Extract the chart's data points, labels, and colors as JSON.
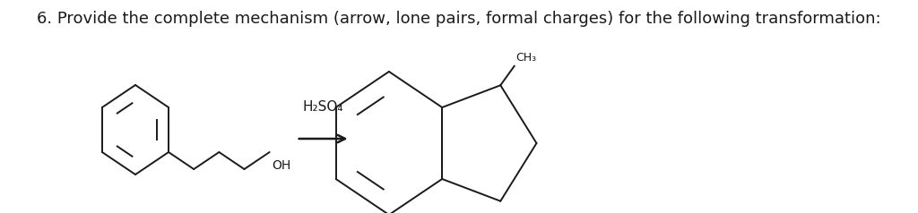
{
  "title_text": "6. Provide the complete mechanism (arrow, lone pairs, formal charges) for the following transformation:",
  "title_fontsize": 13,
  "background_color": "#ffffff",
  "text_color": "#1a1a1a",
  "reagent_text": "H₂SO₄",
  "ch3_text": "CH₃",
  "oh_text": "OH"
}
